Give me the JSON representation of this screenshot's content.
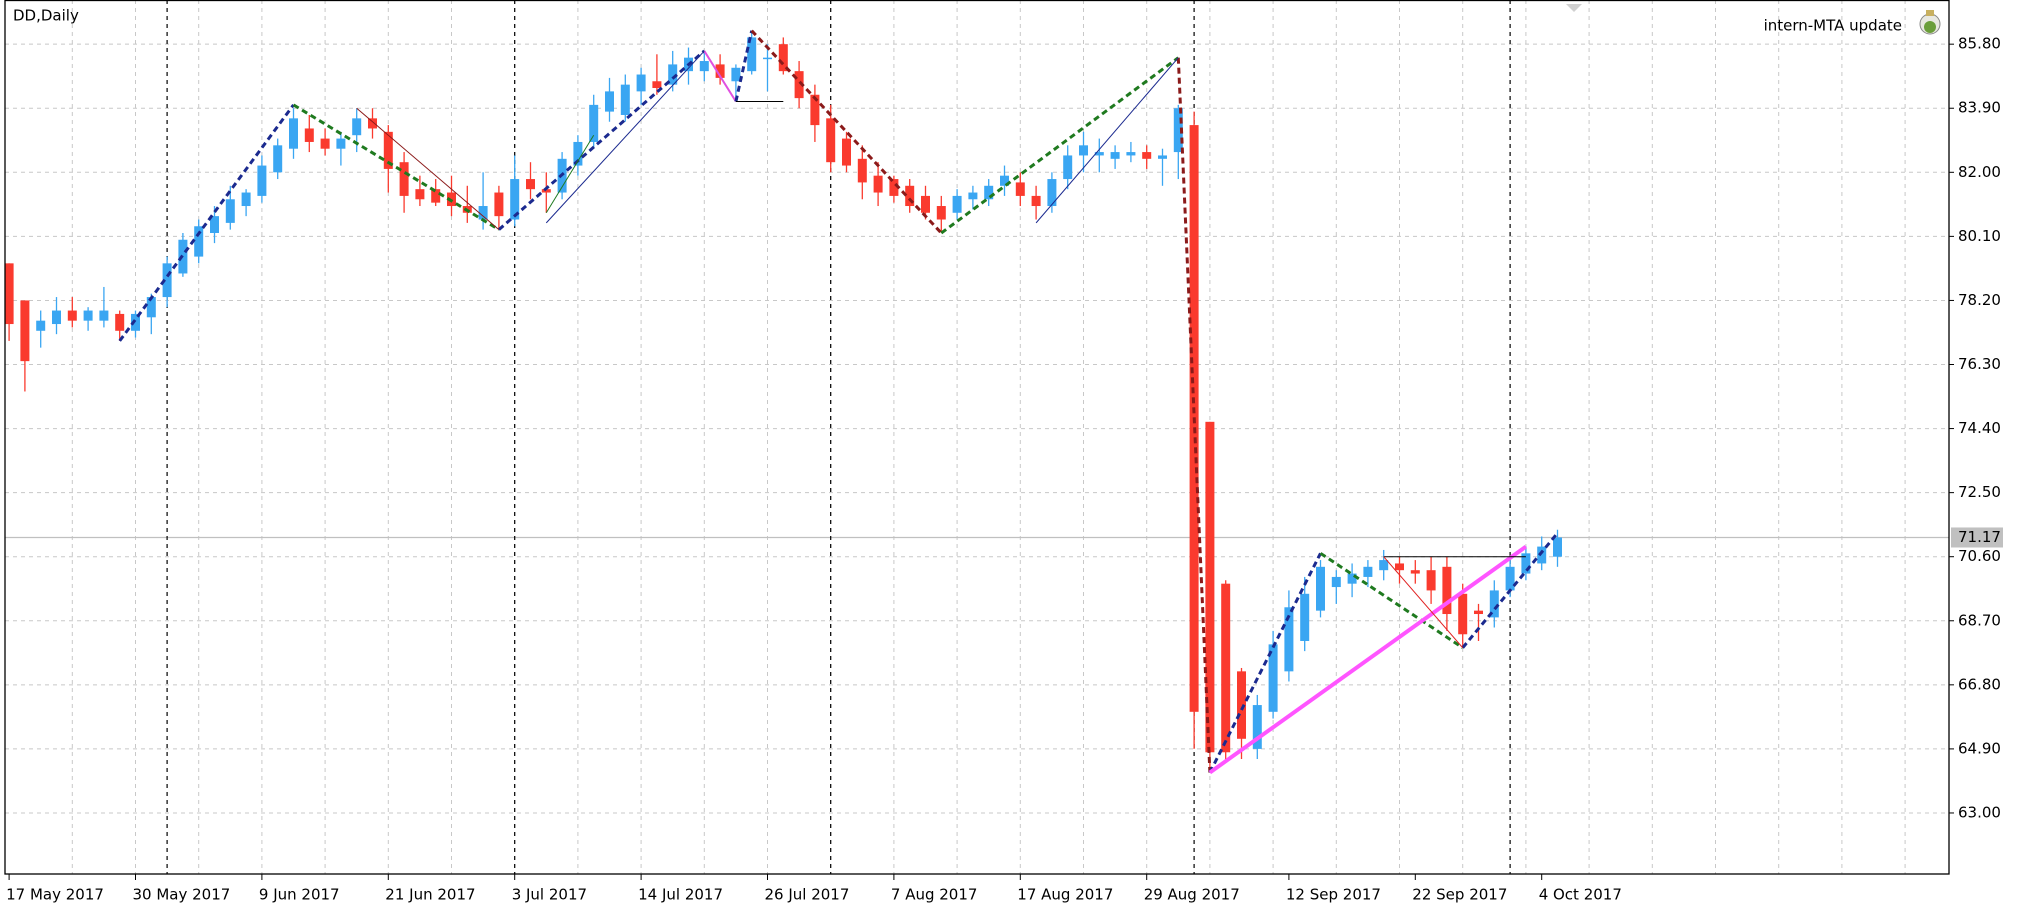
{
  "chart_data": {
    "type": "candlestick",
    "title": "DD,Daily",
    "annotation": "intern-MTA update",
    "categories": [
      "17 May 2017",
      null,
      null,
      null,
      null,
      null,
      null,
      null,
      "30 May 2017",
      null,
      null,
      null,
      null,
      null,
      null,
      null,
      "9 Jun 2017",
      null,
      null,
      null,
      null,
      null,
      null,
      null,
      "21 Jun 2017",
      null,
      null,
      null,
      null,
      null,
      null,
      null,
      "3 Jul 2017",
      null,
      null,
      null,
      null,
      null,
      null,
      null,
      "14 Jul 2017",
      null,
      null,
      null,
      null,
      null,
      null,
      null,
      "26 Jul 2017",
      null,
      null,
      null,
      null,
      null,
      null,
      null,
      "7 Aug 2017",
      null,
      null,
      null,
      null,
      null,
      null,
      null,
      "17 Aug 2017",
      null,
      null,
      null,
      null,
      null,
      null,
      null,
      "29 Aug 2017",
      null,
      null,
      null,
      null,
      null,
      null,
      null,
      null,
      "12 Sep 2017",
      null,
      null,
      null,
      null,
      null,
      null,
      null,
      "22 Sep 2017",
      null,
      null,
      null,
      null,
      null,
      null,
      null,
      "4 Oct 2017",
      null
    ],
    "open": [
      79.3,
      78.2,
      77.3,
      77.5,
      77.9,
      77.6,
      77.6,
      77.8,
      77.3,
      77.7,
      78.3,
      79.0,
      79.5,
      80.2,
      80.5,
      81.0,
      81.3,
      82.0,
      82.7,
      83.3,
      83.0,
      82.7,
      83.1,
      83.6,
      83.2,
      82.3,
      81.5,
      81.5,
      81.4,
      81.0,
      80.6,
      81.4,
      80.6,
      81.8,
      81.5,
      81.4,
      82.2,
      82.9,
      83.8,
      83.7,
      84.4,
      84.7,
      84.6,
      85.0,
      85.0,
      85.2,
      84.7,
      85.0,
      85.4,
      85.8,
      85.0,
      84.3,
      83.6,
      83.0,
      82.4,
      81.9,
      81.8,
      81.6,
      81.3,
      81.0,
      80.8,
      81.2,
      81.2,
      81.6,
      81.7,
      81.3,
      81.0,
      81.8,
      82.5,
      82.5,
      82.4,
      82.5,
      82.6,
      82.4,
      82.6,
      83.4,
      74.6,
      69.8,
      67.2,
      64.9,
      66.0,
      67.2,
      68.1,
      69.0,
      69.7,
      69.8,
      70.0,
      70.2,
      70.4,
      70.2,
      70.2,
      70.3,
      69.5,
      69.0,
      68.8,
      69.6,
      70.1,
      70.4,
      70.6
    ],
    "high": [
      79.3,
      78.2,
      77.9,
      78.3,
      78.3,
      78.0,
      78.6,
      77.9,
      77.9,
      78.4,
      79.5,
      80.2,
      80.6,
      81.0,
      81.6,
      81.5,
      82.5,
      83.0,
      83.9,
      83.7,
      83.3,
      83.2,
      83.9,
      83.9,
      83.4,
      82.6,
      81.9,
      81.8,
      81.9,
      81.6,
      82.0,
      81.6,
      82.5,
      82.3,
      82.0,
      82.6,
      83.1,
      84.3,
      84.8,
      84.9,
      85.1,
      85.5,
      85.6,
      85.7,
      85.6,
      85.5,
      85.2,
      86.2,
      85.8,
      86.0,
      85.3,
      84.6,
      84.0,
      83.2,
      82.8,
      82.3,
      81.9,
      81.8,
      81.6,
      81.3,
      81.5,
      81.6,
      81.8,
      82.2,
      82.0,
      81.6,
      82.0,
      82.8,
      83.2,
      83.0,
      82.8,
      82.9,
      82.8,
      82.7,
      84.0,
      83.8,
      74.6,
      69.9,
      67.3,
      66.5,
      68.4,
      69.6,
      70.0,
      70.5,
      70.2,
      70.4,
      70.5,
      70.8,
      70.6,
      70.5,
      70.6,
      70.6,
      69.8,
      69.2,
      69.9,
      70.6,
      70.9,
      71.2,
      71.4
    ],
    "low": [
      77.0,
      75.5,
      76.8,
      77.2,
      77.4,
      77.3,
      77.4,
      77.0,
      77.1,
      77.2,
      78.0,
      78.9,
      79.3,
      79.9,
      80.3,
      80.7,
      81.1,
      81.8,
      82.4,
      82.6,
      82.5,
      82.2,
      82.6,
      83.0,
      81.4,
      80.8,
      81.0,
      81.0,
      80.7,
      80.5,
      80.3,
      80.3,
      80.4,
      81.2,
      80.8,
      81.2,
      81.9,
      82.7,
      83.5,
      83.5,
      84.0,
      84.3,
      84.4,
      84.6,
      84.7,
      84.6,
      84.1,
      84.9,
      84.4,
      84.9,
      83.9,
      82.9,
      82.0,
      82.0,
      81.2,
      81.0,
      81.1,
      80.8,
      80.6,
      80.2,
      80.6,
      80.9,
      81.0,
      81.3,
      81.0,
      80.6,
      80.8,
      81.5,
      82.0,
      82.0,
      82.1,
      82.3,
      82.1,
      81.6,
      81.8,
      64.9,
      64.2,
      64.5,
      64.6,
      64.6,
      65.8,
      66.9,
      67.8,
      68.8,
      69.2,
      69.4,
      69.7,
      69.9,
      69.8,
      69.8,
      69.2,
      68.4,
      67.9,
      68.1,
      68.5,
      69.4,
      69.9,
      70.2,
      70.3
    ],
    "close": [
      77.5,
      76.4,
      77.6,
      77.9,
      77.6,
      77.9,
      77.9,
      77.3,
      77.8,
      78.3,
      79.3,
      80.0,
      80.4,
      80.7,
      81.2,
      81.4,
      82.2,
      82.8,
      83.6,
      82.9,
      82.7,
      83.0,
      83.6,
      83.3,
      82.1,
      81.3,
      81.2,
      81.1,
      81.0,
      80.8,
      81.0,
      80.7,
      81.8,
      81.5,
      81.4,
      82.4,
      82.9,
      84.0,
      84.4,
      84.6,
      84.9,
      84.5,
      85.2,
      85.4,
      85.3,
      84.8,
      85.1,
      86.0,
      85.4,
      85.0,
      84.2,
      83.4,
      82.3,
      82.2,
      81.7,
      81.4,
      81.3,
      81.0,
      80.8,
      80.6,
      81.3,
      81.4,
      81.6,
      81.9,
      81.3,
      81.0,
      81.8,
      82.5,
      82.8,
      82.6,
      82.6,
      82.6,
      82.4,
      82.5,
      83.9,
      66.0,
      64.8,
      64.8,
      65.2,
      66.2,
      68.0,
      69.1,
      69.5,
      70.3,
      70.0,
      70.1,
      70.3,
      70.5,
      70.2,
      70.1,
      69.6,
      68.9,
      68.3,
      68.9,
      69.6,
      70.3,
      70.7,
      70.9,
      71.17
    ],
    "up_color": "#3aa6f2",
    "down_color": "#fa3a2e",
    "last_price": {
      "value": 71.17,
      "label": "71.17"
    },
    "ylim": [
      61.19,
      87.11
    ],
    "yticks": [
      {
        "value": 63,
        "label": "63.00"
      },
      {
        "value": 64.9,
        "label": "64.90"
      },
      {
        "value": 66.8,
        "label": "66.80"
      },
      {
        "value": 68.7,
        "label": "68.70"
      },
      {
        "value": 70.6,
        "label": "70.60"
      },
      {
        "value": 72.5,
        "label": "72.50"
      },
      {
        "value": 74.4,
        "label": "74.40"
      },
      {
        "value": 76.3,
        "label": "76.30"
      },
      {
        "value": 78.2,
        "label": "78.20"
      },
      {
        "value": 80.1,
        "label": "80.10"
      },
      {
        "value": 82,
        "label": "82.00"
      },
      {
        "value": 83.9,
        "label": "83.90"
      },
      {
        "value": 85.8,
        "label": "85.80"
      }
    ],
    "grid": true,
    "overlays": [
      {
        "color": "#1b2a8f",
        "style": "dashed",
        "width": 3,
        "points": [
          [
            7,
            77.0
          ],
          [
            18,
            84.0
          ]
        ]
      },
      {
        "color": "#1f7a1f",
        "style": "dashed",
        "width": 3,
        "points": [
          [
            18,
            84.0
          ],
          [
            31,
            80.3
          ]
        ]
      },
      {
        "color": "#1b2a8f",
        "style": "dashed",
        "width": 3,
        "points": [
          [
            31,
            80.3
          ],
          [
            44,
            85.6
          ]
        ]
      },
      {
        "color": "#e050e0",
        "style": "solid",
        "width": 2,
        "points": [
          [
            44,
            85.6
          ],
          [
            46,
            84.1
          ]
        ]
      },
      {
        "color": "#1b2a8f",
        "style": "dashed",
        "width": 3,
        "points": [
          [
            46,
            84.1
          ],
          [
            47,
            86.2
          ]
        ]
      },
      {
        "color": "#8b1a1a",
        "style": "dashed",
        "width": 3,
        "points": [
          [
            47,
            86.2
          ],
          [
            59,
            80.2
          ]
        ]
      },
      {
        "color": "#1f7a1f",
        "style": "dashed",
        "width": 3,
        "points": [
          [
            59,
            80.2
          ],
          [
            74,
            85.4
          ]
        ]
      },
      {
        "color": "#8b1a1a",
        "style": "dashed",
        "width": 3,
        "points": [
          [
            74,
            85.4
          ],
          [
            76,
            64.2
          ]
        ]
      },
      {
        "color": "#1b2a8f",
        "style": "dashed",
        "width": 3,
        "points": [
          [
            76,
            64.2
          ],
          [
            83,
            70.7
          ]
        ]
      },
      {
        "color": "#1f7a1f",
        "style": "dashed",
        "width": 3,
        "points": [
          [
            83,
            70.7
          ],
          [
            92,
            67.9
          ]
        ]
      },
      {
        "color": "#1b2a8f",
        "style": "dashed",
        "width": 3,
        "points": [
          [
            92,
            67.9
          ],
          [
            98,
            71.3
          ]
        ]
      },
      {
        "color": "#ff55ff",
        "style": "solid",
        "width": 4,
        "points": [
          [
            76,
            64.2
          ],
          [
            96,
            70.9
          ]
        ]
      },
      {
        "color": "#000000",
        "style": "solid",
        "width": 1,
        "points": [
          [
            46,
            84.1
          ],
          [
            49,
            84.1
          ]
        ]
      },
      {
        "color": "#000000",
        "style": "solid",
        "width": 1,
        "points": [
          [
            87,
            70.6
          ],
          [
            96,
            70.6
          ]
        ]
      },
      {
        "color": "#1b2a8f",
        "style": "solid",
        "width": 1,
        "points": [
          [
            34,
            80.5
          ],
          [
            44,
            85.6
          ]
        ]
      },
      {
        "color": "#1b2a8f",
        "style": "solid",
        "width": 1,
        "points": [
          [
            65,
            80.5
          ],
          [
            74,
            85.4
          ]
        ]
      },
      {
        "color": "#8b1a1a",
        "style": "solid",
        "width": 1,
        "points": [
          [
            22,
            83.9
          ],
          [
            31,
            80.3
          ]
        ]
      },
      {
        "color": "#e02020",
        "style": "solid",
        "width": 1,
        "points": [
          [
            87,
            70.6
          ],
          [
            92,
            67.9
          ]
        ]
      },
      {
        "color": "#1f7a1f",
        "style": "solid",
        "width": 1,
        "points": [
          [
            34,
            80.8
          ],
          [
            37,
            83.1
          ]
        ]
      }
    ]
  }
}
